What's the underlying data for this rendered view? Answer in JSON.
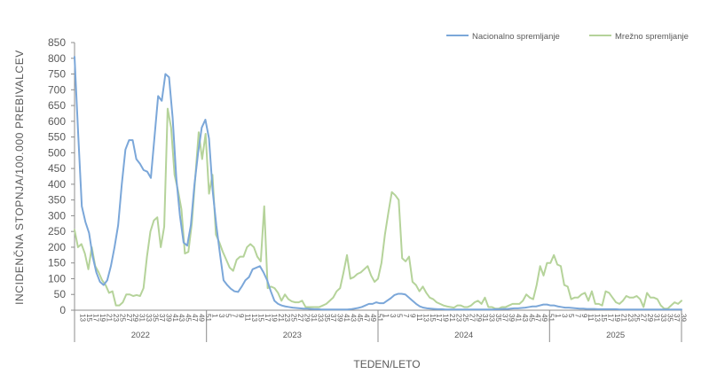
{
  "chart_data": {
    "type": "line",
    "xlabel": "TEDEN/LETO",
    "ylabel": "INCIDENČNA  STOPNJA/100.000  PREBIVALCEV",
    "ylim": [
      0,
      850
    ],
    "yticks": [
      0,
      50,
      100,
      150,
      200,
      250,
      300,
      350,
      400,
      450,
      500,
      550,
      600,
      650,
      700,
      750,
      800,
      850
    ],
    "legend_position": "top-right",
    "years": [
      "2022",
      "2023",
      "2024",
      "2025"
    ],
    "week_ticks": {
      "2022": [
        "13",
        "15",
        "17",
        "19",
        "21",
        "23",
        "25",
        "27",
        "29",
        "31",
        "33",
        "35",
        "37",
        "39",
        "41",
        "43",
        "45",
        "47",
        "49",
        "51"
      ],
      "2023": [
        "1",
        "3",
        "5",
        "7",
        "9",
        "11",
        "13",
        "15",
        "17",
        "19",
        "21",
        "23",
        "25",
        "27",
        "29",
        "31",
        "33",
        "35",
        "37",
        "39",
        "41",
        "43",
        "45",
        "47",
        "49",
        "51"
      ],
      "2024": [
        "1",
        "3",
        "5",
        "7",
        "9",
        "11",
        "13",
        "15",
        "17",
        "19",
        "21",
        "23",
        "25",
        "27",
        "29",
        "31",
        "33",
        "35",
        "37",
        "39",
        "41",
        "43",
        "45",
        "47",
        "49",
        "51"
      ],
      "2025": [
        "1",
        "3",
        "5",
        "7",
        "9",
        "11",
        "13",
        "15",
        "17",
        "19",
        "21",
        "23",
        "25",
        "27",
        "29",
        "31",
        "33",
        "35",
        "37",
        "39"
      ]
    },
    "colors": {
      "axis": "#8c8c8c",
      "text": "#595959"
    },
    "series": [
      {
        "name": "Nacionalno spremljanje",
        "color": "#7ba7d9",
        "values": [
          805,
          560,
          330,
          280,
          245,
          170,
          120,
          90,
          80,
          95,
          140,
          200,
          270,
          400,
          510,
          540,
          540,
          480,
          465,
          445,
          440,
          420,
          550,
          680,
          665,
          750,
          740,
          610,
          420,
          300,
          215,
          205,
          270,
          400,
          500,
          580,
          605,
          545,
          380,
          270,
          180,
          95,
          80,
          68,
          60,
          58,
          75,
          95,
          105,
          130,
          135,
          140,
          120,
          95,
          60,
          30,
          20,
          15,
          12,
          10,
          8,
          7,
          6,
          5,
          5,
          4,
          3,
          3,
          2,
          2,
          2,
          2,
          2,
          2,
          2,
          2,
          3,
          5,
          7,
          10,
          15,
          20,
          20,
          25,
          22,
          22,
          30,
          38,
          48,
          52,
          52,
          50,
          40,
          30,
          20,
          12,
          8,
          6,
          5,
          4,
          3,
          3,
          2,
          2,
          2,
          2,
          2,
          2,
          2,
          2,
          2,
          2,
          2,
          2,
          2,
          2,
          3,
          3,
          4,
          4,
          5,
          6,
          6,
          7,
          8,
          10,
          12,
          12,
          15,
          18,
          18,
          15,
          15,
          12,
          10,
          8,
          8,
          7,
          6,
          5,
          5,
          4,
          4,
          4,
          3,
          3,
          3,
          3,
          3,
          3,
          2,
          2,
          2,
          2,
          2,
          2,
          2,
          2,
          2,
          2,
          2,
          2,
          2,
          2,
          2,
          2,
          2,
          2
        ]
      },
      {
        "name": "Mrežno spremljanje",
        "color": "#b5d39a",
        "values": [
          255,
          200,
          210,
          180,
          130,
          200,
          140,
          120,
          95,
          80,
          55,
          60,
          15,
          15,
          25,
          50,
          50,
          45,
          48,
          45,
          70,
          170,
          250,
          285,
          295,
          200,
          265,
          640,
          580,
          430,
          380,
          320,
          180,
          185,
          275,
          420,
          565,
          480,
          560,
          370,
          430,
          240,
          215,
          185,
          160,
          135,
          125,
          160,
          170,
          170,
          200,
          210,
          200,
          170,
          155,
          330,
          70,
          75,
          70,
          55,
          30,
          50,
          35,
          28,
          25,
          25,
          30,
          10,
          10,
          10,
          10,
          10,
          15,
          20,
          30,
          40,
          60,
          70,
          120,
          175,
          100,
          105,
          115,
          120,
          130,
          140,
          110,
          90,
          100,
          150,
          240,
          310,
          375,
          365,
          350,
          165,
          155,
          170,
          90,
          80,
          60,
          75,
          55,
          40,
          35,
          25,
          20,
          15,
          12,
          10,
          8,
          15,
          15,
          10,
          10,
          15,
          25,
          30,
          20,
          40,
          10,
          10,
          5,
          5,
          10,
          10,
          15,
          20,
          20,
          20,
          30,
          50,
          40,
          35,
          80,
          140,
          110,
          150,
          150,
          175,
          145,
          140,
          80,
          75,
          35,
          40,
          40,
          50,
          55,
          30,
          60,
          20,
          20,
          15,
          60,
          55,
          40,
          25,
          20,
          30,
          45,
          40,
          40,
          45,
          35,
          10,
          55,
          40,
          40,
          35,
          15,
          5,
          5,
          15,
          25,
          20,
          30
        ]
      }
    ]
  }
}
